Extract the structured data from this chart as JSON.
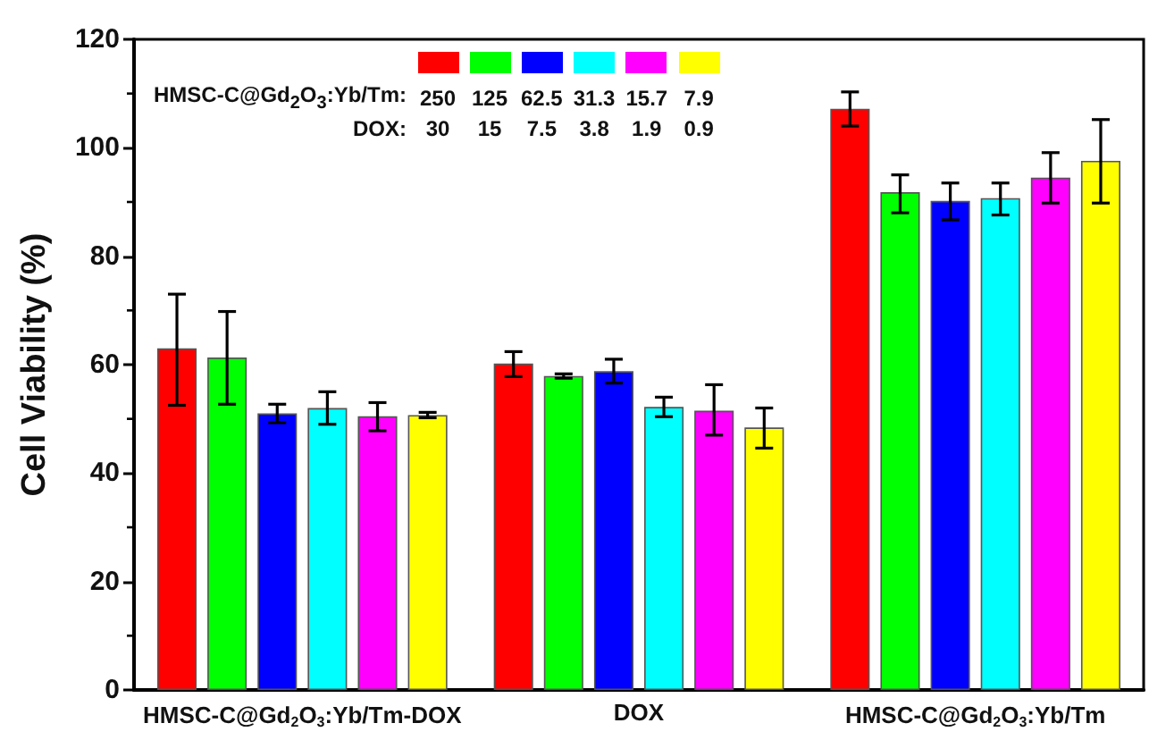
{
  "chart_data": {
    "type": "bar",
    "ylabel": "Cell Viability (%)",
    "categories": [
      "HMSC-C@Gd$_{2}$O$_{3}$:Yb/Tm-DOX",
      "DOX",
      "HMSC-C@Gd$_{2}$O$_{3}$:Yb/Tm"
    ],
    "series": [
      {
        "color": "#ff0000",
        "values": [
          63,
          60.2,
          107.2
        ],
        "errors": [
          [
            52.5,
            73
          ],
          [
            57.8,
            62.4
          ],
          [
            104,
            110.3
          ]
        ]
      },
      {
        "color": "#00ff00",
        "values": [
          61.3,
          57.9,
          91.8
        ],
        "errors": [
          [
            52.7,
            69.8
          ],
          [
            57.5,
            58.3
          ],
          [
            88,
            95
          ]
        ]
      },
      {
        "color": "#0000ff",
        "values": [
          51,
          58.8,
          90.2
        ],
        "errors": [
          [
            49.3,
            52.7
          ],
          [
            56.6,
            61
          ],
          [
            86.7,
            93.5
          ]
        ]
      },
      {
        "color": "#00ffff",
        "values": [
          52,
          52.2,
          90.7
        ],
        "errors": [
          [
            49,
            55
          ],
          [
            50.4,
            54
          ],
          [
            87.6,
            93.5
          ]
        ]
      },
      {
        "color": "#ff00ff",
        "values": [
          50.5,
          51.5,
          94.5
        ],
        "errors": [
          [
            47.8,
            53
          ],
          [
            47,
            56.3
          ],
          [
            89.8,
            99.1
          ]
        ]
      },
      {
        "color": "#ffff00",
        "values": [
          50.7,
          48.4,
          97.6
        ],
        "errors": [
          [
            50.2,
            51.2
          ],
          [
            44.6,
            52
          ],
          [
            89.8,
            105.2
          ]
        ]
      }
    ],
    "annotations": [
      "HMSC-C@Gd$_{2}$O$_{3}$:Yb/Tm: 250 125 62.5 31.3 15.7 7.9",
      "DOX: 30 15 7.5 3.8 1.9 0.9"
    ],
    "ylim": [
      0,
      120
    ],
    "yticks": [
      0,
      20,
      40,
      60,
      80,
      100,
      120
    ],
    "grid": false
  }
}
